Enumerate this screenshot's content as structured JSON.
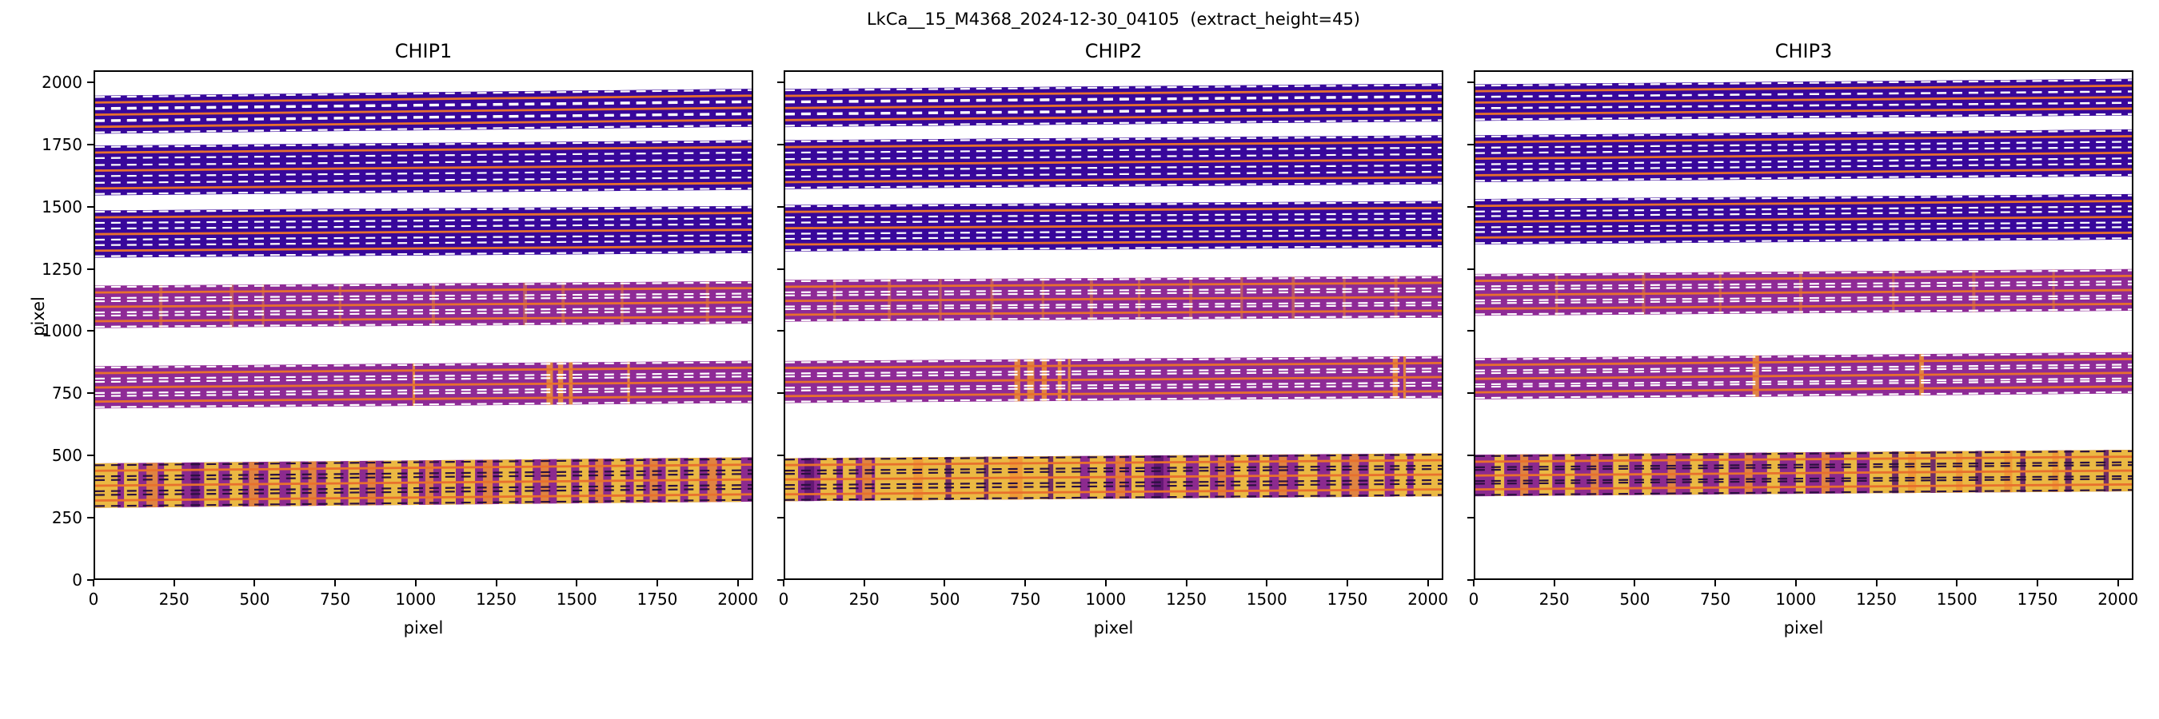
{
  "figure": {
    "title": "LkCa__15_M4368_2024-12-30_04105  (extract_height=45)"
  },
  "axes": {
    "xlabel": "pixel",
    "ylabel": "pixel",
    "xticks": [
      0,
      250,
      500,
      750,
      1000,
      1250,
      1500,
      1750,
      2000
    ],
    "yticks": [
      0,
      250,
      500,
      750,
      1000,
      1250,
      1500,
      1750,
      2000
    ],
    "xlim": [
      0,
      2048
    ],
    "ylim": [
      0,
      2048
    ]
  },
  "palette": {
    "background": "#ffffff",
    "band_dark": "#38079b",
    "band_purple": "#8e2a96",
    "band_bright_base": "#8c2a8f",
    "stripe_y": "#f0c13f",
    "stripe_o": "#ee9434",
    "stripe_d": "#5c1470",
    "stripe_s": "#e8883c",
    "trace": "#e8702d",
    "dash_light": "#ffffff",
    "dash_dark": "#2a1040",
    "spine": "#000000"
  },
  "chart_data": {
    "type": "heatmap",
    "extract_height": 45,
    "trace_half_window": 22.5,
    "panels": [
      {
        "name": "CHIP1",
        "bands": [
          {
            "y0": 285,
            "y1": 465,
            "rise": 25,
            "style": "bright",
            "orders": [
              315,
              375,
              435
            ],
            "stripes": [
              [
                0,
                70,
                "y"
              ],
              [
                90,
                45,
                "y"
              ],
              [
                160,
                35,
                "o"
              ],
              [
                215,
                55,
                "y"
              ],
              [
                300,
                25,
                "d"
              ],
              [
                340,
                45,
                "y"
              ],
              [
                420,
                40,
                "y"
              ],
              [
                480,
                30,
                "o"
              ],
              [
                540,
                35,
                "y"
              ],
              [
                610,
                30,
                "y"
              ],
              [
                665,
                25,
                "o"
              ],
              [
                720,
                45,
                "y"
              ],
              [
                790,
                35,
                "y"
              ],
              [
                850,
                25,
                "o"
              ],
              [
                900,
                55,
                "y"
              ],
              [
                975,
                35,
                "y"
              ],
              [
                1030,
                25,
                "o"
              ],
              [
                1080,
                45,
                "y"
              ],
              [
                1150,
                35,
                "y"
              ],
              [
                1210,
                30,
                "o"
              ],
              [
                1260,
                50,
                "y"
              ],
              [
                1330,
                35,
                "y"
              ],
              [
                1390,
                25,
                "o"
              ],
              [
                1440,
                45,
                "y"
              ],
              [
                1510,
                30,
                "y"
              ],
              [
                1560,
                25,
                "o"
              ],
              [
                1610,
                45,
                "y"
              ],
              [
                1680,
                30,
                "y"
              ],
              [
                1730,
                25,
                "o"
              ],
              [
                1780,
                45,
                "y"
              ],
              [
                1850,
                35,
                "y"
              ],
              [
                1910,
                30,
                "o"
              ],
              [
                1955,
                60,
                "y"
              ]
            ]
          },
          {
            "y0": 687,
            "y1": 858,
            "rise": 22,
            "style": "purple",
            "orders": [
              715,
              772,
              830
            ],
            "stripes": [
              [
                990,
                8,
                "o"
              ],
              [
                1408,
                20,
                "o"
              ],
              [
                1444,
                16,
                "o"
              ],
              [
                1478,
                12,
                "o"
              ],
              [
                1660,
                8,
                "o"
              ]
            ]
          },
          {
            "y0": 1012,
            "y1": 1184,
            "rise": 18,
            "style": "purple",
            "orders": [
              1040,
              1098,
              1156
            ],
            "stripes": [
              [
                200,
                10,
                "s"
              ],
              [
                420,
                12,
                "s"
              ],
              [
                520,
                8,
                "s"
              ],
              [
                760,
                8,
                "s"
              ],
              [
                1050,
                10,
                "s"
              ],
              [
                1335,
                12,
                "s"
              ],
              [
                1455,
                10,
                "s"
              ],
              [
                1640,
                8,
                "s"
              ],
              [
                1905,
                10,
                "s"
              ]
            ]
          },
          {
            "y0": 1297,
            "y1": 1488,
            "rise": 18,
            "style": "dark",
            "orders": [
              1325,
              1392,
              1460
            ],
            "stripes": []
          },
          {
            "y0": 1549,
            "y1": 1750,
            "rise": 22,
            "style": "dark",
            "orders": [
              1577,
              1649,
              1722
            ],
            "stripes": []
          },
          {
            "y0": 1798,
            "y1": 1952,
            "rise": 28,
            "style": "dark",
            "orders": [
              1826,
              1875,
              1924
            ],
            "stripes": []
          }
        ]
      },
      {
        "name": "CHIP2",
        "bands": [
          {
            "y0": 312,
            "y1": 486,
            "rise": 20,
            "style": "bright",
            "orders": [
              340,
              400,
              458
            ],
            "stripes": [
              [
                0,
                40,
                "y"
              ],
              [
                60,
                30,
                "d"
              ],
              [
                110,
                50,
                "y"
              ],
              [
                180,
                40,
                "y"
              ],
              [
                240,
                30,
                "o"
              ],
              [
                280,
                640,
                "y"
              ],
              [
                400,
                30,
                "o"
              ],
              [
                500,
                18,
                "d"
              ],
              [
                620,
                14,
                "d"
              ],
              [
                700,
                40,
                "o"
              ],
              [
                820,
                16,
                "d"
              ],
              [
                950,
                50,
                "y"
              ],
              [
                1030,
                30,
                "o"
              ],
              [
                1080,
                40,
                "y"
              ],
              [
                1150,
                30,
                "d"
              ],
              [
                1200,
                50,
                "y"
              ],
              [
                1290,
                35,
                "y"
              ],
              [
                1350,
                25,
                "o"
              ],
              [
                1400,
                45,
                "y"
              ],
              [
                1480,
                30,
                "y"
              ],
              [
                1540,
                25,
                "o"
              ],
              [
                1600,
                60,
                "y"
              ],
              [
                1700,
                35,
                "y"
              ],
              [
                1760,
                30,
                "o"
              ],
              [
                1820,
                50,
                "y"
              ],
              [
                1900,
                40,
                "y"
              ],
              [
                1960,
                88,
                "y"
              ]
            ]
          },
          {
            "y0": 709,
            "y1": 879,
            "rise": 20,
            "style": "purple",
            "orders": [
              737,
              794,
              851
            ],
            "stripes": [
              [
                715,
                18,
                "o"
              ],
              [
                755,
                22,
                "o"
              ],
              [
                800,
                16,
                "o"
              ],
              [
                850,
                12,
                "o"
              ],
              [
                882,
                8,
                "o"
              ],
              [
                1895,
                16,
                "o"
              ],
              [
                1928,
                8,
                "o"
              ]
            ]
          },
          {
            "y0": 1038,
            "y1": 1207,
            "rise": 16,
            "style": "purple",
            "orders": [
              1066,
              1122,
              1179
            ],
            "stripes": [
              [
                150,
                8,
                "s"
              ],
              [
                320,
                10,
                "s"
              ],
              [
                480,
                8,
                "s"
              ],
              [
                640,
                10,
                "s"
              ],
              [
                800,
                8,
                "s"
              ],
              [
                950,
                10,
                "s"
              ],
              [
                1100,
                8,
                "s"
              ],
              [
                1260,
                10,
                "s"
              ],
              [
                1420,
                8,
                "s"
              ],
              [
                1580,
                10,
                "s"
              ],
              [
                1740,
                8,
                "s"
              ],
              [
                1900,
                10,
                "s"
              ]
            ]
          },
          {
            "y0": 1322,
            "y1": 1510,
            "rise": 16,
            "style": "dark",
            "orders": [
              1350,
              1416,
              1482
            ],
            "stripes": []
          },
          {
            "y0": 1574,
            "y1": 1772,
            "rise": 20,
            "style": "dark",
            "orders": [
              1602,
              1673,
              1744
            ],
            "stripes": []
          },
          {
            "y0": 1825,
            "y1": 1979,
            "rise": 22,
            "style": "dark",
            "orders": [
              1853,
              1902,
              1951
            ],
            "stripes": []
          }
        ]
      },
      {
        "name": "CHIP3",
        "bands": [
          {
            "y0": 332,
            "y1": 500,
            "rise": 20,
            "style": "bright",
            "orders": [
              360,
              416,
              472
            ],
            "stripes": [
              [
                60,
                30,
                "y"
              ],
              [
                140,
                25,
                "o"
              ],
              [
                200,
                40,
                "y"
              ],
              [
                280,
                30,
                "y"
              ],
              [
                360,
                25,
                "o"
              ],
              [
                430,
                50,
                "y"
              ],
              [
                520,
                30,
                "y"
              ],
              [
                600,
                25,
                "o"
              ],
              [
                670,
                40,
                "y"
              ],
              [
                760,
                30,
                "y"
              ],
              [
                840,
                25,
                "o"
              ],
              [
                910,
                40,
                "y"
              ],
              [
                1000,
                30,
                "y"
              ],
              [
                1080,
                25,
                "o"
              ],
              [
                1150,
                40,
                "y"
              ],
              [
                1230,
                818,
                "y"
              ],
              [
                1300,
                20,
                "d"
              ],
              [
                1350,
                25,
                "o"
              ],
              [
                1420,
                16,
                "d"
              ],
              [
                1500,
                20,
                "o"
              ],
              [
                1560,
                20,
                "d"
              ],
              [
                1650,
                25,
                "o"
              ],
              [
                1700,
                16,
                "d"
              ],
              [
                1800,
                20,
                "o"
              ],
              [
                1840,
                20,
                "d"
              ],
              [
                1960,
                16,
                "d"
              ]
            ]
          },
          {
            "y0": 724,
            "y1": 891,
            "rise": 24,
            "style": "purple",
            "orders": [
              752,
              807,
              863
            ],
            "stripes": [
              [
                865,
                20,
                "o"
              ],
              [
                1385,
                14,
                "o"
              ]
            ]
          },
          {
            "y0": 1062,
            "y1": 1231,
            "rise": 20,
            "style": "purple",
            "orders": [
              1090,
              1146,
              1203
            ],
            "stripes": [
              [
                250,
                8,
                "s"
              ],
              [
                520,
                10,
                "s"
              ],
              [
                760,
                8,
                "s"
              ],
              [
                1010,
                10,
                "s"
              ],
              [
                1300,
                8,
                "s"
              ],
              [
                1550,
                10,
                "s"
              ],
              [
                1800,
                8,
                "s"
              ]
            ]
          },
          {
            "y0": 1350,
            "y1": 1534,
            "rise": 20,
            "style": "dark",
            "orders": [
              1378,
              1442,
              1506
            ],
            "stripes": []
          },
          {
            "y0": 1602,
            "y1": 1792,
            "rise": 24,
            "style": "dark",
            "orders": [
              1630,
              1697,
              1764
            ],
            "stripes": []
          },
          {
            "y0": 1850,
            "y1": 1998,
            "rise": 22,
            "style": "dark",
            "orders": [
              1878,
              1924,
              1970
            ],
            "stripes": []
          }
        ]
      }
    ]
  }
}
